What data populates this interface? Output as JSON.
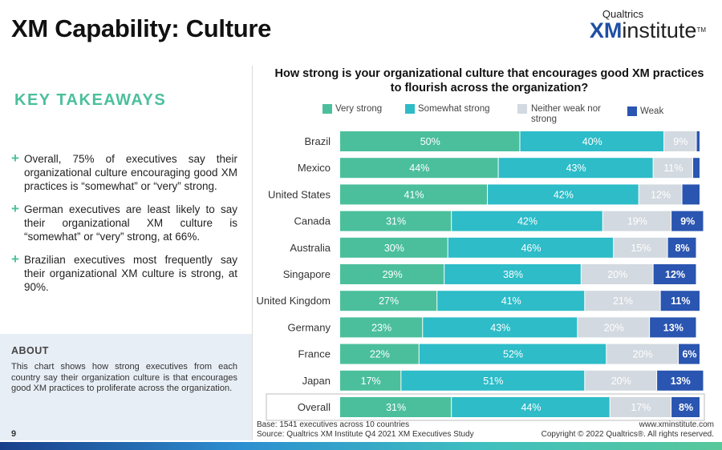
{
  "page": {
    "title": "XM Capability: Culture",
    "logo_top": "Qualtrics",
    "logo_xm": "XM",
    "logo_rest": "institute",
    "logo_tm": "TM",
    "page_number": "9"
  },
  "takeaways": {
    "heading": "KEY TAKEAWAYS",
    "items": [
      "Overall, 75% of executives say their organizational culture encouraging good XM practices is “somewhat” or “very” strong.",
      "German executives are least likely to say their organizational XM culture is “somewhat” or “very” strong, at 66%.",
      "Brazilian executives most frequently say their organizational XM culture is strong, at 90%."
    ]
  },
  "about": {
    "heading": "ABOUT",
    "text": "This chart shows how strong executives from each country say their organization culture is that encourages good XM practices to proliferate across the organization."
  },
  "footer": {
    "base": "Base: 1541 executives across 10 countries",
    "source": "Source: Qualtrics XM Institute Q4 2021 XM Executives Study",
    "site": "www.xminstitute.com",
    "copyright": "Copyright © 2022 Qualtrics®. All rights reserved."
  },
  "colors": {
    "very_strong": "#4bbf9c",
    "somewhat_strong": "#2dbcc8",
    "neither": "#d3d9e0",
    "weak": "#2a55b0"
  },
  "chart_data": {
    "type": "bar",
    "orientation": "horizontal-stacked-100",
    "title": "How strong is your organizational culture that encourages good XM practices to flourish across the organization?",
    "categories": [
      "Brazil",
      "Mexico",
      "United States",
      "Canada",
      "Australia",
      "Singapore",
      "United Kingdom",
      "Germany",
      "France",
      "Japan",
      "Overall"
    ],
    "series": [
      {
        "name": "Very strong",
        "values": [
          50,
          44,
          41,
          31,
          30,
          29,
          27,
          23,
          22,
          17,
          31
        ]
      },
      {
        "name": "Somewhat strong",
        "values": [
          40,
          43,
          42,
          42,
          46,
          38,
          41,
          43,
          52,
          51,
          44
        ]
      },
      {
        "name": "Neither weak nor strong",
        "values": [
          9,
          11,
          12,
          19,
          15,
          20,
          21,
          20,
          20,
          20,
          17
        ]
      },
      {
        "name": "Weak",
        "values": [
          1,
          2,
          5,
          9,
          8,
          12,
          11,
          13,
          6,
          13,
          8
        ]
      }
    ],
    "labels": [
      [
        "50%",
        "40%",
        "9%",
        ""
      ],
      [
        "44%",
        "43%",
        "11%",
        ""
      ],
      [
        "41%",
        "42%",
        "12%",
        ""
      ],
      [
        "31%",
        "42%",
        "19%",
        "9%"
      ],
      [
        "30%",
        "46%",
        "15%",
        "8%"
      ],
      [
        "29%",
        "38%",
        "20%",
        "12%"
      ],
      [
        "27%",
        "41%",
        "21%",
        "11%"
      ],
      [
        "23%",
        "43%",
        "20%",
        "13%"
      ],
      [
        "22%",
        "52%",
        "20%",
        "6%"
      ],
      [
        "17%",
        "51%",
        "20%",
        "13%"
      ],
      [
        "31%",
        "44%",
        "17%",
        "8%"
      ]
    ],
    "xlim": [
      0,
      100
    ],
    "legend_position": "top"
  }
}
